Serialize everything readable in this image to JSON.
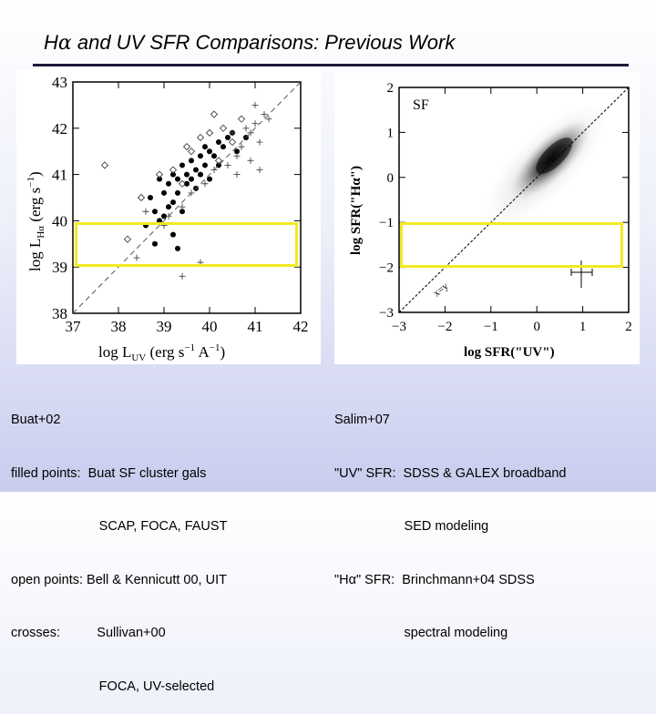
{
  "slide": {
    "title": "Hα and UV SFR Comparisons: Previous Work",
    "title_parts": [
      "H",
      "α",
      " and UV SFR Comparisons: Previous Work"
    ]
  },
  "left_plot": {
    "ylabel_parts": [
      "log L",
      "Hα",
      " (erg s",
      "−1",
      ")"
    ],
    "xlabel_parts": [
      "log L",
      "UV",
      " (erg s",
      "−1",
      " A",
      "−1",
      ")"
    ],
    "xticks": [
      "37",
      "38",
      "39",
      "40",
      "41",
      "42"
    ],
    "yticks": [
      "38",
      "39",
      "40",
      "41",
      "42",
      "43"
    ]
  },
  "right_plot": {
    "label": "SF",
    "line_label": "x=y",
    "ylabel": "log SFR(\"Hα\")",
    "xlabel": "log SFR(\"UV\")",
    "xticks": [
      "−3",
      "−2",
      "−1",
      "0",
      "1",
      "2"
    ],
    "yticks": [
      "−3",
      "−2",
      "−1",
      "0",
      "1",
      "2"
    ]
  },
  "captions": {
    "left": [
      "Buat+02",
      "filled points:  Buat SF cluster gals",
      "                        SCAP, FOCA, FAUST",
      "open points: Bell & Kennicutt 00, UIT",
      "crosses:          Sullivan+00",
      "                        FOCA, UV-selected"
    ],
    "right": [
      "Salim+07",
      "\"UV\" SFR:  SDSS & GALEX broadband",
      "                   SED modeling",
      "\"Hα\" SFR:  Brinchmann+04 SDSS",
      "                   spectral modeling"
    ]
  },
  "colors": {
    "highlight_box": "#f2ea22",
    "rule": "#1a1a3a"
  },
  "chart_data": [
    {
      "type": "scatter",
      "xlabel": "log L_UV (erg s^-1 A^-1)",
      "ylabel": "log L_Hα (erg s^-1)",
      "xlim": [
        37,
        42
      ],
      "ylim": [
        38,
        43
      ],
      "series": [
        {
          "name": "filled points",
          "points": [
            [
              38.7,
              40.5
            ],
            [
              38.8,
              40.2
            ],
            [
              38.9,
              40.9
            ],
            [
              39.0,
              40.6
            ],
            [
              39.1,
              40.3
            ],
            [
              39.1,
              40.8
            ],
            [
              39.2,
              41.0
            ],
            [
              39.3,
              40.6
            ],
            [
              39.3,
              40.9
            ],
            [
              39.4,
              41.2
            ],
            [
              39.5,
              40.8
            ],
            [
              39.5,
              41.0
            ],
            [
              39.6,
              40.9
            ],
            [
              39.6,
              41.3
            ],
            [
              39.7,
              41.1
            ],
            [
              39.8,
              41.4
            ],
            [
              39.9,
              41.2
            ],
            [
              40.0,
              41.5
            ],
            [
              40.1,
              41.4
            ],
            [
              40.2,
              41.7
            ],
            [
              40.3,
              41.6
            ],
            [
              40.4,
              41.8
            ],
            [
              39.0,
              40.1
            ],
            [
              38.9,
              40.0
            ],
            [
              39.2,
              39.7
            ],
            [
              38.8,
              39.5
            ],
            [
              39.4,
              40.2
            ],
            [
              39.7,
              40.7
            ],
            [
              40.5,
              41.9
            ],
            [
              39.9,
              41.6
            ],
            [
              40.0,
              40.9
            ],
            [
              39.2,
              40.4
            ],
            [
              38.6,
              39.9
            ],
            [
              39.3,
              39.4
            ],
            [
              39.8,
              41.0
            ],
            [
              40.2,
              41.2
            ],
            [
              40.6,
              41.5
            ],
            [
              40.8,
              41.8
            ]
          ]
        },
        {
          "name": "open points",
          "points": [
            [
              37.7,
              41.2
            ],
            [
              38.2,
              39.6
            ],
            [
              38.5,
              40.5
            ],
            [
              38.9,
              41.0
            ],
            [
              39.2,
              41.1
            ],
            [
              39.5,
              41.6
            ],
            [
              39.8,
              41.8
            ],
            [
              40.0,
              41.9
            ],
            [
              40.3,
              42.0
            ],
            [
              40.2,
              41.3
            ],
            [
              39.6,
              41.5
            ],
            [
              40.5,
              41.7
            ],
            [
              40.7,
              42.2
            ],
            [
              40.1,
              42.3
            ],
            [
              39.4,
              40.8
            ]
          ]
        },
        {
          "name": "crosses",
          "points": [
            [
              38.4,
              39.2
            ],
            [
              38.6,
              40.2
            ],
            [
              39.0,
              39.9
            ],
            [
              39.1,
              40.1
            ],
            [
              39.4,
              40.3
            ],
            [
              39.6,
              40.6
            ],
            [
              39.9,
              40.8
            ],
            [
              40.1,
              41.1
            ],
            [
              40.4,
              41.2
            ],
            [
              40.6,
              41.4
            ],
            [
              40.7,
              41.6
            ],
            [
              40.9,
              41.9
            ],
            [
              41.0,
              42.1
            ],
            [
              41.1,
              41.7
            ],
            [
              41.2,
              42.3
            ],
            [
              41.0,
              42.5
            ],
            [
              40.8,
              42.0
            ],
            [
              40.5,
              41.9
            ],
            [
              41.3,
              42.2
            ],
            [
              40.9,
              41.3
            ],
            [
              41.1,
              41.1
            ],
            [
              40.6,
              41.0
            ],
            [
              39.4,
              38.8
            ],
            [
              39.8,
              39.1
            ]
          ]
        }
      ],
      "reference_line": "y = x + 1",
      "highlight_yrange": [
        38.9,
        39.8
      ]
    },
    {
      "type": "heatmap",
      "label": "SF",
      "xlabel": "log SFR(\"UV\")",
      "ylabel": "log SFR(\"Hα\")",
      "xlim": [
        -3,
        2
      ],
      "ylim": [
        -3,
        2
      ],
      "density_peak": [
        0.3,
        0.4
      ],
      "reference_line": "x=y",
      "highlight_yrange": [
        -2,
        -0.9
      ]
    }
  ]
}
